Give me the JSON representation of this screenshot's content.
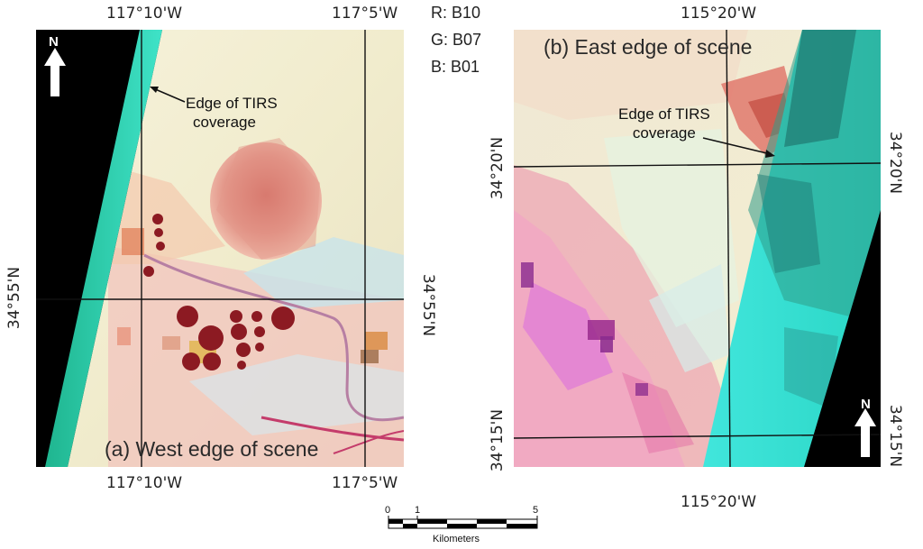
{
  "legend": {
    "r": "R: B10",
    "g": "G: B07",
    "b": "B: B01"
  },
  "panel_a": {
    "title": "(a) West edge of scene",
    "annotation": "Edge of TIRS\ncoverage",
    "annotation_line1": "Edge of TIRS",
    "annotation_line2": "coverage",
    "top_lon_left": "117°10'W",
    "top_lon_right": "117°5'W",
    "bottom_lon_left": "117°10'W",
    "bottom_lon_right": "117°5'W",
    "lat_left": "34°55'N",
    "lat_right": "34°55'N",
    "north": "N"
  },
  "panel_b": {
    "title": "(b) East edge of scene",
    "annotation_line1": "Edge of TIRS",
    "annotation_line2": "coverage",
    "top_lon": "115°20'W",
    "bottom_lon": "115°20'W",
    "lat_top_left": "34°20'N",
    "lat_top_right": "34°20'N",
    "lat_bottom_left": "34°15'N",
    "lat_bottom_right": "34°15'N",
    "north": "N"
  },
  "scalebar": {
    "ticks": [
      "0",
      "1",
      "5"
    ],
    "unit": "Kilometers"
  },
  "colors": {
    "tirs": "#2ee6c8",
    "desert": "#f4f0d2",
    "crop": "#8c1a22",
    "playa": "#ee7a96"
  }
}
